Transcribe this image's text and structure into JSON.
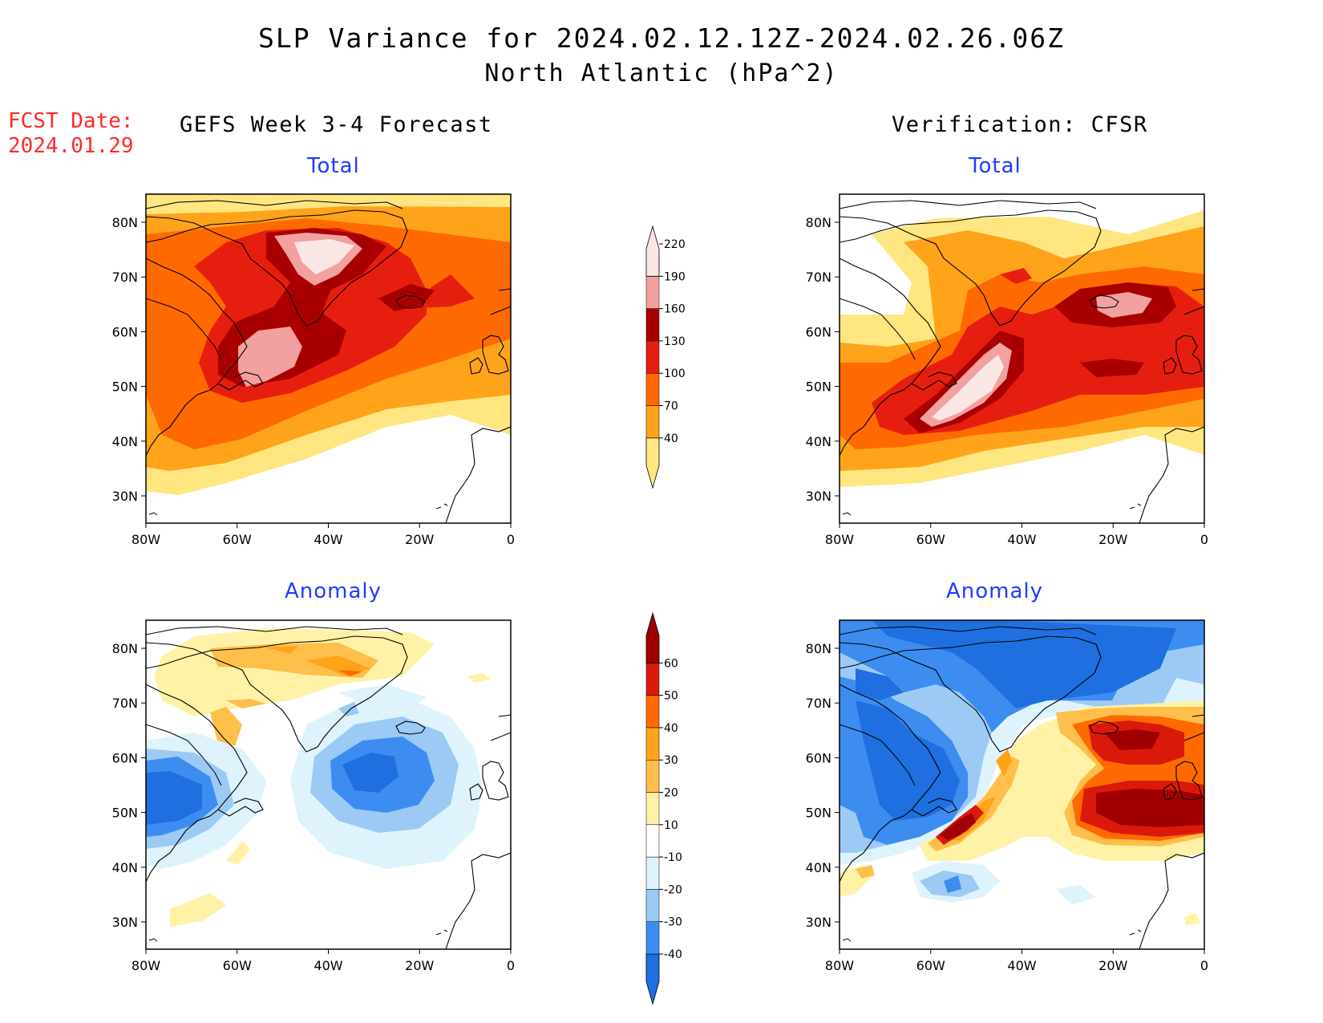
{
  "header": {
    "title": "SLP Variance for 2024.02.12.12Z-2024.02.26.06Z",
    "subtitle": "North Atlantic (hPa^2)"
  },
  "forecast_date": {
    "label": "FCST Date:",
    "value": "2024.01.29"
  },
  "columns": {
    "left": "GEFS Week 3-4 Forecast",
    "right": "Verification: CFSR"
  },
  "panel_titles": {
    "top": "Total",
    "bottom": "Anomaly"
  },
  "axes": {
    "lon_labels": [
      "80W",
      "60W",
      "40W",
      "20W",
      "0"
    ],
    "lat_labels": [
      "30N",
      "40N",
      "50N",
      "60N",
      "70N",
      "80N"
    ]
  },
  "colorbars": {
    "total": {
      "levels": [
        "40",
        "70",
        "100",
        "130",
        "160",
        "190",
        "220"
      ],
      "colors": [
        "#ffe680",
        "#ffa31a",
        "#ff6a00",
        "#e61e0f",
        "#a80000",
        "#f2a0a0",
        "#fbe6e6"
      ]
    },
    "anomaly": {
      "levels": [
        "-40",
        "-30",
        "-20",
        "-10",
        "10",
        "20",
        "30",
        "40",
        "50",
        "60"
      ],
      "colors": [
        "#1f6fe0",
        "#3d8df0",
        "#9ccaf5",
        "#def3fb",
        "#ffffff",
        "#fff2a6",
        "#ffbf4a",
        "#ffa31a",
        "#ff6a00",
        "#d91a0b",
        "#a00000"
      ]
    }
  }
}
